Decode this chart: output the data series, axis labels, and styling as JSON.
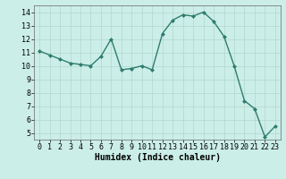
{
  "x": [
    0,
    1,
    2,
    3,
    4,
    5,
    6,
    7,
    8,
    9,
    10,
    11,
    12,
    13,
    14,
    15,
    16,
    17,
    18,
    19,
    20,
    21,
    22,
    23
  ],
  "y": [
    11.1,
    10.8,
    10.5,
    10.2,
    10.1,
    10.0,
    10.7,
    12.0,
    9.7,
    9.8,
    10.0,
    9.7,
    12.4,
    13.4,
    13.8,
    13.7,
    14.0,
    13.3,
    12.2,
    10.0,
    7.4,
    6.8,
    4.7,
    5.5
  ],
  "line_color": "#2e7d6e",
  "marker": "D",
  "marker_size": 2.0,
  "line_width": 1.0,
  "bg_color": "#cceee8",
  "grid_color": "#b0d8cc",
  "xlabel": "Humidex (Indice chaleur)",
  "xlabel_fontsize": 7,
  "tick_fontsize": 6,
  "ylim": [
    4.5,
    14.5
  ],
  "xlim": [
    -0.5,
    23.5
  ],
  "yticks": [
    5,
    6,
    7,
    8,
    9,
    10,
    11,
    12,
    13,
    14
  ],
  "xticks": [
    0,
    1,
    2,
    3,
    4,
    5,
    6,
    7,
    8,
    9,
    10,
    11,
    12,
    13,
    14,
    15,
    16,
    17,
    18,
    19,
    20,
    21,
    22,
    23
  ]
}
